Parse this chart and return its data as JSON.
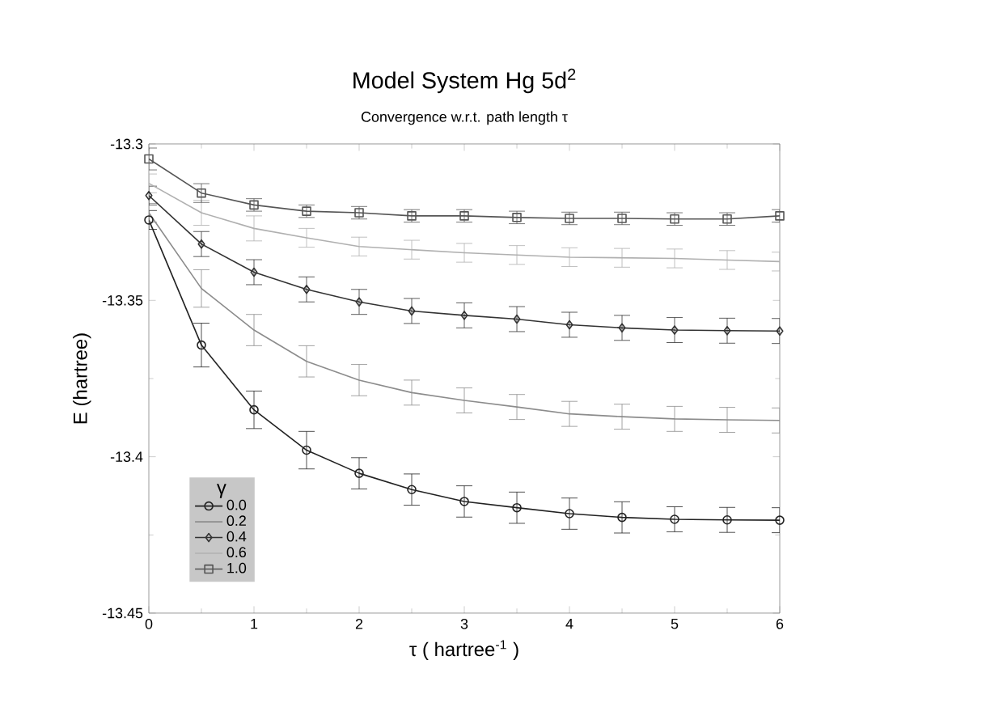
{
  "chart_data": {
    "type": "line",
    "title": "Model System Hg 5d$^{2}$",
    "subtitle": "Convergence w.r.t. path length τ",
    "xlabel": "τ ( hartree$^{-1}$ )",
    "ylabel": "E (hartree)",
    "legend_title": "γ",
    "legend": "bottom left",
    "x": [
      0,
      0.5,
      1,
      1.5,
      2,
      2.5,
      3,
      3.5,
      4,
      4.5,
      5,
      5.5,
      6
    ],
    "xlim": [
      0,
      6
    ],
    "ylim": [
      -13.45,
      -13.3
    ],
    "xticks": [
      0,
      1,
      2,
      3,
      4,
      5,
      6
    ],
    "yticks": [
      -13.45,
      -13.4,
      -13.35,
      -13.3
    ],
    "series": [
      {
        "name": "0.0",
        "color": "#222222",
        "marker": "circle",
        "values": [
          -13.3243,
          -13.3643,
          -13.385,
          -13.3979,
          -13.4053,
          -13.4105,
          -13.4143,
          -13.4163,
          -13.4182,
          -13.4194,
          -13.42,
          -13.4202,
          -13.4203
        ],
        "errors": [
          0.003,
          0.007,
          0.006,
          0.006,
          0.005,
          0.005,
          0.005,
          0.005,
          0.005,
          0.005,
          0.004,
          0.004,
          0.004
        ]
      },
      {
        "name": "0.2",
        "color": "#8c8c8c",
        "marker": "none",
        "values": [
          -13.322,
          -13.3462,
          -13.3595,
          -13.3695,
          -13.3755,
          -13.3795,
          -13.382,
          -13.3841,
          -13.3863,
          -13.3872,
          -13.3879,
          -13.3882,
          -13.3884
        ],
        "errors": [
          0.003,
          0.006,
          0.005,
          0.005,
          0.005,
          0.004,
          0.004,
          0.004,
          0.004,
          0.004,
          0.004,
          0.004,
          0.004
        ]
      },
      {
        "name": "0.4",
        "color": "#333333",
        "marker": "diamond",
        "values": [
          -13.3165,
          -13.332,
          -13.341,
          -13.3465,
          -13.3505,
          -13.3534,
          -13.3548,
          -13.356,
          -13.3578,
          -13.3588,
          -13.3595,
          -13.3597,
          -13.3598
        ],
        "errors": [
          0.003,
          0.004,
          0.004,
          0.004,
          0.004,
          0.004,
          0.004,
          0.004,
          0.004,
          0.004,
          0.004,
          0.004,
          0.004
        ]
      },
      {
        "name": "0.6",
        "color": "#b0b0b0",
        "marker": "none",
        "values": [
          -13.3126,
          -13.322,
          -13.327,
          -13.33,
          -13.3328,
          -13.3338,
          -13.3348,
          -13.3355,
          -13.3362,
          -13.3364,
          -13.3366,
          -13.3371,
          -13.3376
        ],
        "errors": [
          0.003,
          0.004,
          0.004,
          0.003,
          0.003,
          0.003,
          0.003,
          0.003,
          0.003,
          0.003,
          0.003,
          0.003,
          0.003
        ]
      },
      {
        "name": "1.0",
        "color": "#555555",
        "marker": "square",
        "values": [
          -13.3048,
          -13.3157,
          -13.3195,
          -13.3215,
          -13.322,
          -13.323,
          -13.323,
          -13.3235,
          -13.3238,
          -13.3238,
          -13.324,
          -13.324,
          -13.323
        ],
        "errors": [
          0.0035,
          0.003,
          0.002,
          0.002,
          0.002,
          0.002,
          0.002,
          0.002,
          0.002,
          0.002,
          0.002,
          0.002,
          0.002
        ]
      }
    ]
  }
}
